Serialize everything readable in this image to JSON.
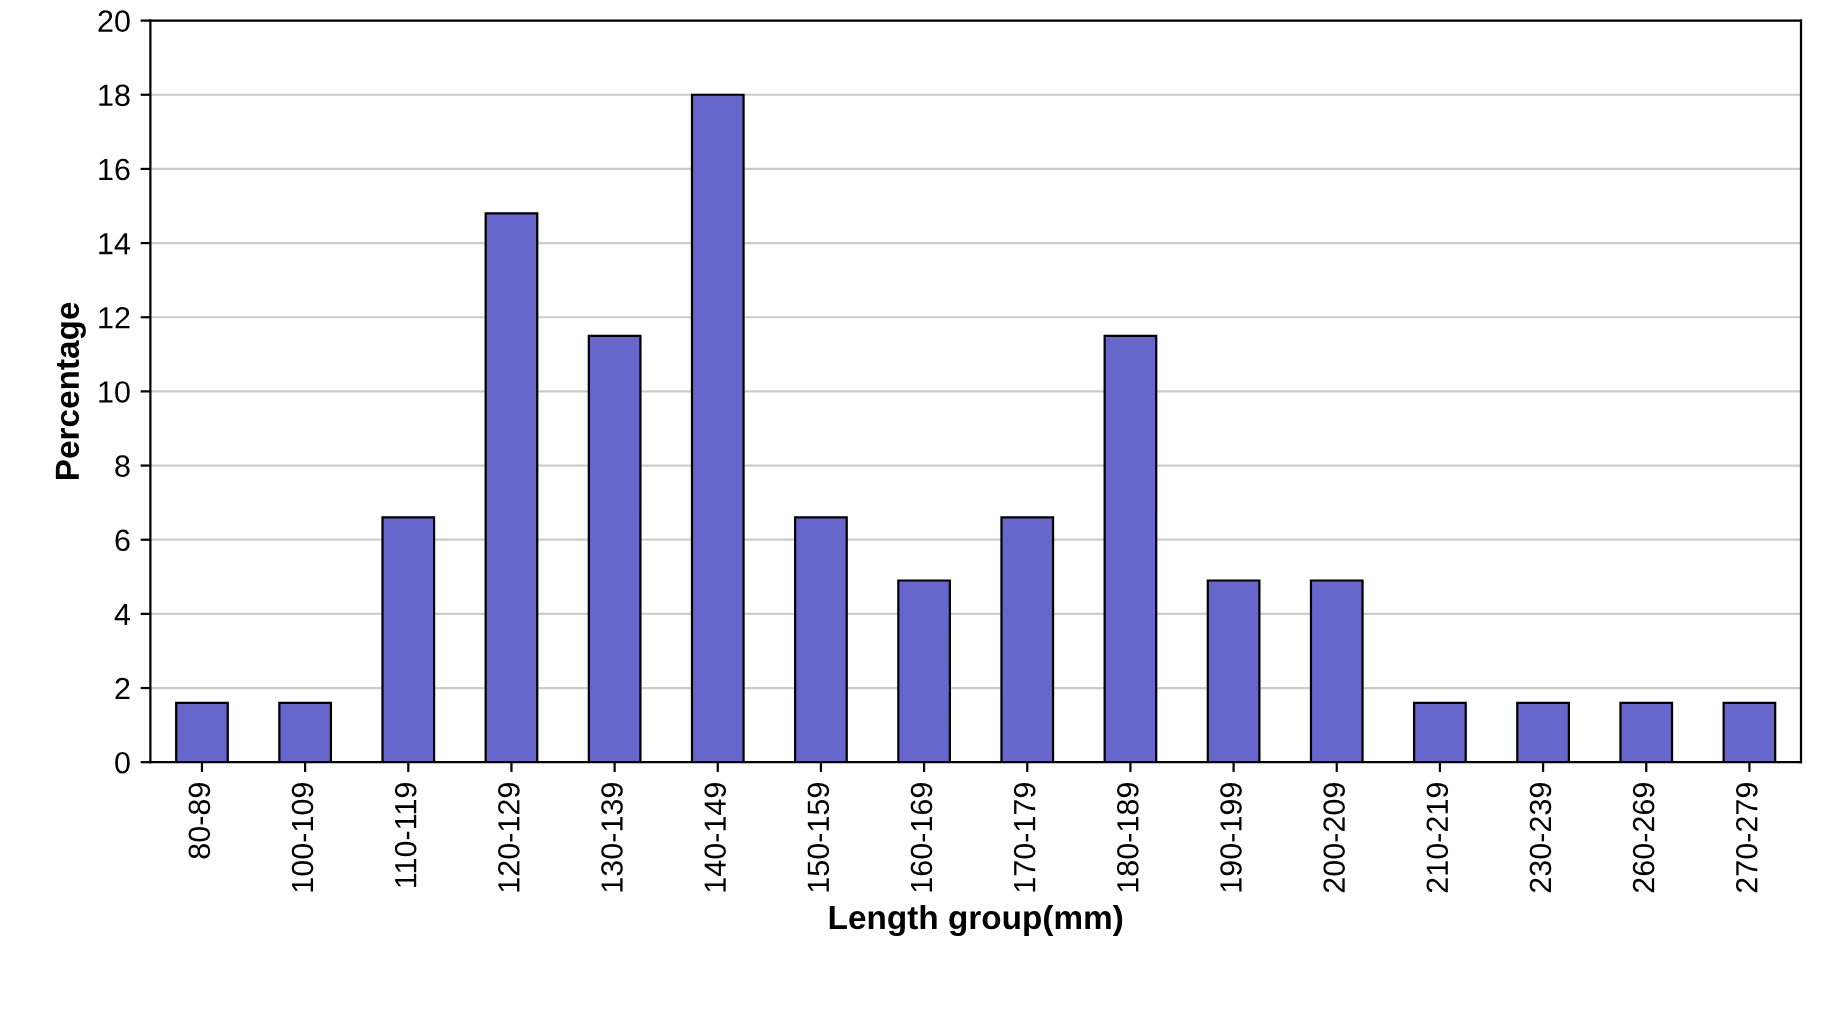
{
  "chart_data": {
    "type": "bar",
    "xlabel": "Length group(mm)",
    "ylabel": "Percentage",
    "categories": [
      "80-89",
      "100-109",
      "110-119",
      "120-129",
      "130-139",
      "140-149",
      "150-159",
      "160-169",
      "170-179",
      "180-189",
      "190-199",
      "200-209",
      "210-219",
      "230-239",
      "260-269",
      "270-279"
    ],
    "values": [
      1.6,
      1.6,
      6.6,
      14.8,
      11.5,
      18.0,
      6.6,
      4.9,
      6.6,
      11.5,
      4.9,
      4.9,
      1.6,
      1.6,
      1.6,
      1.6
    ],
    "color": "#6666cc",
    "ylim": [
      0,
      20
    ],
    "yticks": [
      0,
      2,
      4,
      6,
      8,
      10,
      12,
      14,
      16,
      18,
      20
    ],
    "grid": "y"
  }
}
